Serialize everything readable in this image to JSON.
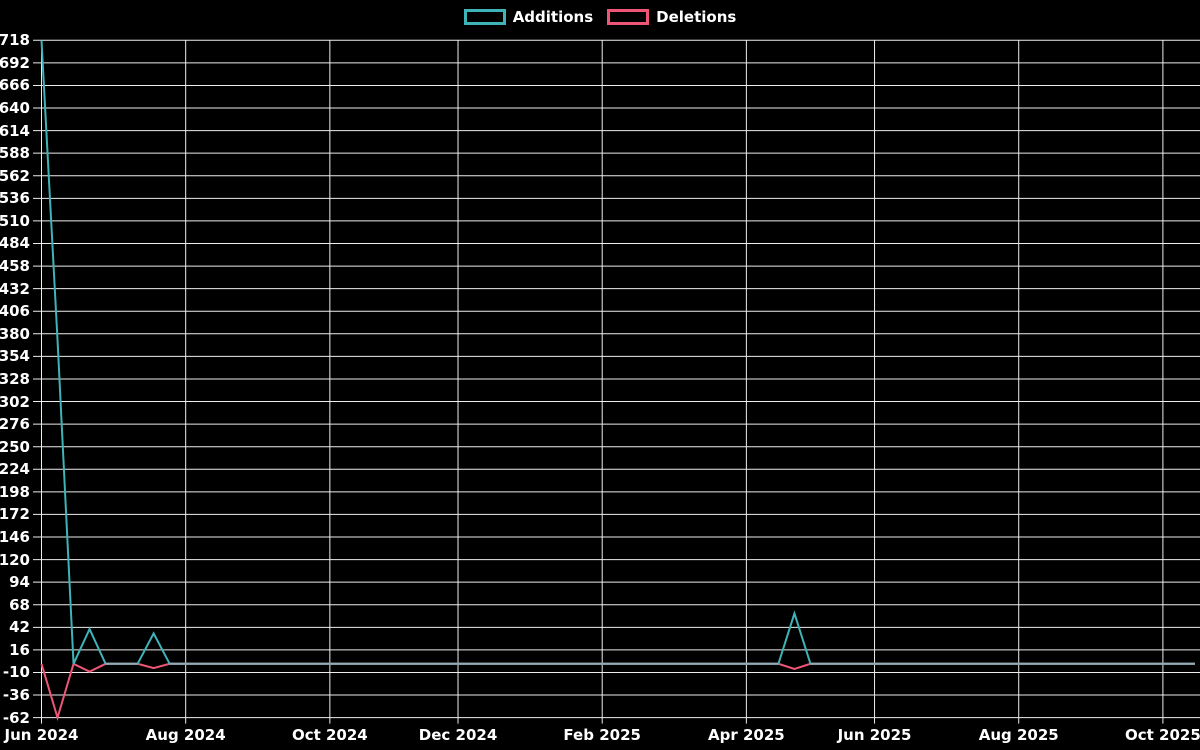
{
  "legend": {
    "items": [
      {
        "label": "Additions",
        "color": "#3eb4b8"
      },
      {
        "label": "Deletions",
        "color": "#ee5677"
      }
    ]
  },
  "chart_data": {
    "type": "line",
    "title": "",
    "xlabel": "",
    "ylabel": "",
    "x_unit": "week",
    "weeks": 73,
    "x_tick_labels": [
      "Jun 2024",
      "Aug 2024",
      "Oct 2024",
      "Dec 2024",
      "Feb 2025",
      "Apr 2025",
      "Jun 2025",
      "Aug 2025",
      "Oct 2025"
    ],
    "x_tick_week_index": [
      0,
      9,
      18,
      26,
      35,
      44,
      52,
      61,
      70
    ],
    "ylim": [
      -62,
      718
    ],
    "y_tick_step": 26,
    "grid": true,
    "legend_position": "top-center",
    "background": "#000000",
    "grid_color": "#ededed",
    "text_color": "#ffffff",
    "overlap_line_color": "#95aab4",
    "series": [
      {
        "name": "Additions",
        "color": "#3eb4b8",
        "values": [
          718,
          373,
          0,
          40,
          0,
          0,
          0,
          35,
          0,
          0,
          0,
          0,
          0,
          0,
          0,
          0,
          0,
          0,
          0,
          0,
          0,
          0,
          0,
          0,
          0,
          0,
          0,
          0,
          0,
          0,
          0,
          0,
          0,
          0,
          0,
          0,
          0,
          0,
          0,
          0,
          0,
          0,
          0,
          0,
          0,
          0,
          0,
          58,
          0,
          0,
          0,
          0,
          0,
          0,
          0,
          0,
          0,
          0,
          0,
          0,
          0,
          0,
          0,
          0,
          0,
          0,
          0,
          0,
          0,
          0,
          0,
          0,
          0
        ]
      },
      {
        "name": "Deletions",
        "color": "#ee5677",
        "values": [
          0,
          -62,
          0,
          -9,
          0,
          0,
          0,
          -5,
          0,
          0,
          0,
          0,
          0,
          0,
          0,
          0,
          0,
          0,
          0,
          0,
          0,
          0,
          0,
          0,
          0,
          0,
          0,
          0,
          0,
          0,
          0,
          0,
          0,
          0,
          0,
          0,
          0,
          0,
          0,
          0,
          0,
          0,
          0,
          0,
          0,
          0,
          0,
          -6,
          0,
          0,
          0,
          0,
          0,
          0,
          0,
          0,
          0,
          0,
          0,
          0,
          0,
          0,
          0,
          0,
          0,
          0,
          0,
          0,
          0,
          0,
          0,
          0,
          0
        ]
      }
    ]
  }
}
